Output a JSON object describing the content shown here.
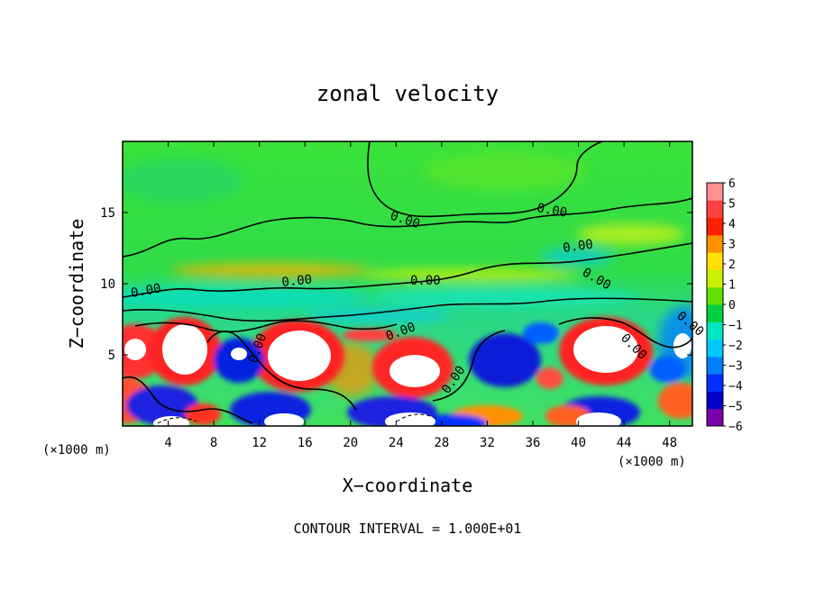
{
  "chart_data": {
    "type": "heatmap",
    "title": "zonal velocity",
    "xlabel": "X−coordinate",
    "ylabel": "Z−coordinate",
    "x_unit_left": "(×1000 m)",
    "x_unit_right": "(×1000 m)",
    "x_ticks": [
      "4",
      "8",
      "12",
      "16",
      "20",
      "24",
      "28",
      "32",
      "36",
      "40",
      "44",
      "48"
    ],
    "y_ticks": [
      "5",
      "10",
      "15"
    ],
    "xlim": [
      0,
      50
    ],
    "ylim": [
      0,
      20
    ],
    "colorbar": {
      "ticks": [
        "6",
        "5",
        "4",
        "3",
        "2",
        "1",
        "0",
        "−1",
        "−2",
        "−3",
        "−4",
        "−5",
        "−6"
      ],
      "range": [
        -6,
        6
      ],
      "colors": [
        "#7a00a8",
        "#0000c8",
        "#0030ff",
        "#0080ff",
        "#00c8ff",
        "#00e8c0",
        "#00d040",
        "#60e000",
        "#c8f000",
        "#ffe000",
        "#ff9000",
        "#ff2000",
        "#ff4040",
        "#ff9090"
      ]
    },
    "contour_labels": [
      "0.00",
      "0.00",
      "0.00",
      "0.00",
      "0.00",
      "0.00",
      "0.00",
      "0.00",
      "0.00",
      "0.00",
      "0.00",
      "0.00"
    ],
    "contour_interval_note": "CONTOUR INTERVAL = 1.000E+01",
    "grid": false
  }
}
